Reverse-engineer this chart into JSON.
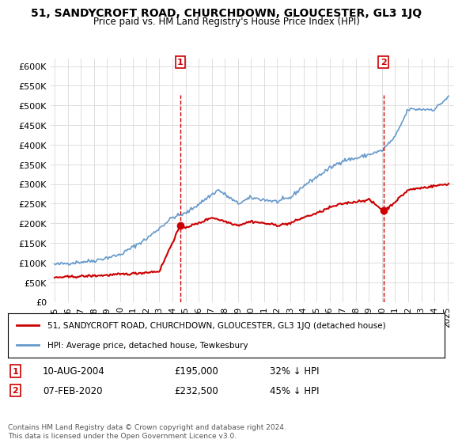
{
  "title": "51, SANDYCROFT ROAD, CHURCHDOWN, GLOUCESTER, GL3 1JQ",
  "subtitle": "Price paid vs. HM Land Registry's House Price Index (HPI)",
  "ylabel_ticks": [
    "£0",
    "£50K",
    "£100K",
    "£150K",
    "£200K",
    "£250K",
    "£300K",
    "£350K",
    "£400K",
    "£450K",
    "£500K",
    "£550K",
    "£600K"
  ],
  "ylim": [
    0,
    620000
  ],
  "ytick_vals": [
    0,
    50000,
    100000,
    150000,
    200000,
    250000,
    300000,
    350000,
    400000,
    450000,
    500000,
    550000,
    600000
  ],
  "xlim_start": 1995.0,
  "xlim_end": 2025.5,
  "hpi_color": "#6699cc",
  "price_color": "#cc0000",
  "marker_color": "#cc0000",
  "vline_color": "#cc0000",
  "marker1_x": 2004.6,
  "marker1_y": 195000,
  "marker1_label": "1",
  "marker2_x": 2020.1,
  "marker2_y": 232500,
  "marker2_label": "2",
  "legend_line1": "51, SANDYCROFT ROAD, CHURCHDOWN, GLOUCESTER, GL3 1JQ (detached house)",
  "legend_line2": "HPI: Average price, detached house, Tewkesbury",
  "note1_label": "1",
  "note1_date": "10-AUG-2004",
  "note1_price": "£195,000",
  "note1_hpi": "32% ↓ HPI",
  "note2_label": "2",
  "note2_date": "07-FEB-2020",
  "note2_price": "£232,500",
  "note2_hpi": "45% ↓ HPI",
  "footer": "Contains HM Land Registry data © Crown copyright and database right 2024.\nThis data is licensed under the Open Government Licence v3.0.",
  "background_color": "#ffffff",
  "grid_color": "#dddddd"
}
